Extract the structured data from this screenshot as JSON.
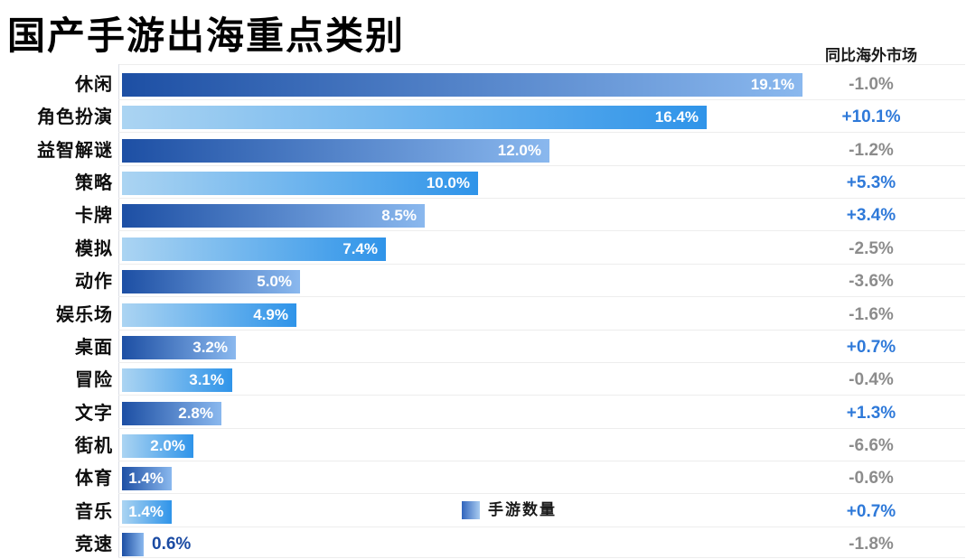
{
  "title": "国产手游出海重点类别",
  "right_column_header": "同比海外市场",
  "legend": {
    "label": "手游数量"
  },
  "colors": {
    "bar_dark_gradient_start": "#1d4fa4",
    "bar_dark_gradient_end": "#8ab8ee",
    "bar_light_gradient_start": "#abd4f2",
    "bar_light_gradient_end": "#2f94e9",
    "yoy_positive": "#2e79d9",
    "yoy_negative": "#8c8c8c",
    "outside_bar_label": "#1b4ba3",
    "grid_line": "#ededed",
    "axis_line": "#dcdfe6"
  },
  "chart_data": {
    "type": "bar",
    "orientation": "horizontal",
    "title": "国产手游出海重点类别",
    "series_name": "手游数量",
    "xlabel": "",
    "ylabel": "",
    "xlim": [
      0,
      19.1
    ],
    "grid": "horizontal row separators on",
    "legend_position": "bottom-center",
    "secondary_column_header": "同比海外市场",
    "rows": [
      {
        "category": "休闲",
        "value": 19.1,
        "value_label": "19.1%",
        "yoy": "-1.0%",
        "yoy_positive": false,
        "bar_style": "dark",
        "value_label_position": "inside"
      },
      {
        "category": "角色扮演",
        "value": 16.4,
        "value_label": "16.4%",
        "yoy": "+10.1%",
        "yoy_positive": true,
        "bar_style": "light",
        "value_label_position": "inside"
      },
      {
        "category": "益智解谜",
        "value": 12.0,
        "value_label": "12.0%",
        "yoy": "-1.2%",
        "yoy_positive": false,
        "bar_style": "dark",
        "value_label_position": "inside"
      },
      {
        "category": "策略",
        "value": 10.0,
        "value_label": "10.0%",
        "yoy": "+5.3%",
        "yoy_positive": true,
        "bar_style": "light",
        "value_label_position": "inside"
      },
      {
        "category": "卡牌",
        "value": 8.5,
        "value_label": "8.5%",
        "yoy": "+3.4%",
        "yoy_positive": true,
        "bar_style": "dark",
        "value_label_position": "inside"
      },
      {
        "category": "模拟",
        "value": 7.4,
        "value_label": "7.4%",
        "yoy": "-2.5%",
        "yoy_positive": false,
        "bar_style": "light",
        "value_label_position": "inside"
      },
      {
        "category": "动作",
        "value": 5.0,
        "value_label": "5.0%",
        "yoy": "-3.6%",
        "yoy_positive": false,
        "bar_style": "dark",
        "value_label_position": "inside"
      },
      {
        "category": "娱乐场",
        "value": 4.9,
        "value_label": "4.9%",
        "yoy": "-1.6%",
        "yoy_positive": false,
        "bar_style": "light",
        "value_label_position": "inside"
      },
      {
        "category": "桌面",
        "value": 3.2,
        "value_label": "3.2%",
        "yoy": "+0.7%",
        "yoy_positive": true,
        "bar_style": "dark",
        "value_label_position": "inside"
      },
      {
        "category": "冒险",
        "value": 3.1,
        "value_label": "3.1%",
        "yoy": "-0.4%",
        "yoy_positive": false,
        "bar_style": "light",
        "value_label_position": "inside"
      },
      {
        "category": "文字",
        "value": 2.8,
        "value_label": "2.8%",
        "yoy": "+1.3%",
        "yoy_positive": true,
        "bar_style": "dark",
        "value_label_position": "inside"
      },
      {
        "category": "街机",
        "value": 2.0,
        "value_label": "2.0%",
        "yoy": "-6.6%",
        "yoy_positive": false,
        "bar_style": "light",
        "value_label_position": "inside"
      },
      {
        "category": "体育",
        "value": 1.4,
        "value_label": "1.4%",
        "yoy": "-0.6%",
        "yoy_positive": false,
        "bar_style": "dark",
        "value_label_position": "inside"
      },
      {
        "category": "音乐",
        "value": 1.4,
        "value_label": "1.4%",
        "yoy": "+0.7%",
        "yoy_positive": true,
        "bar_style": "light",
        "value_label_position": "inside"
      },
      {
        "category": "竞速",
        "value": 0.6,
        "value_label": "0.6%",
        "yoy": "-1.8%",
        "yoy_positive": false,
        "bar_style": "dark",
        "value_label_position": "outside"
      }
    ]
  }
}
